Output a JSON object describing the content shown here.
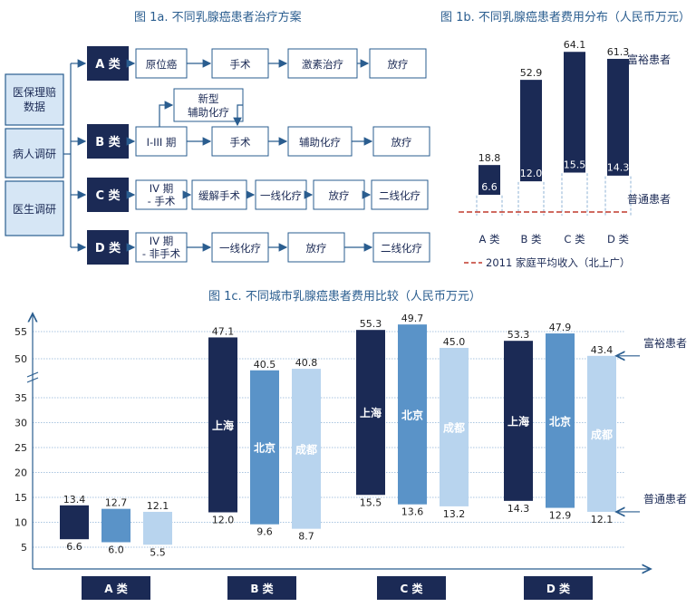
{
  "fig_a": {
    "title": "图 1a. 不同乳腺癌患者治疗方案",
    "sources": [
      "医保理赔数据",
      "病人调研",
      "医生调研"
    ],
    "rows": [
      {
        "category": "A 类",
        "steps": [
          "原位癌",
          "手术",
          "激素治疗",
          "放疗"
        ]
      },
      {
        "category": "B 类",
        "steps": [
          "I-III 期",
          "手术",
          "辅助化疗",
          "放疗"
        ],
        "extra": "新型辅助化疗"
      },
      {
        "category": "C 类",
        "steps": [
          "IV 期 - 手术",
          "缓解手术",
          "一线化疗",
          "放疗",
          "二线化疗"
        ]
      },
      {
        "category": "D 类",
        "steps": [
          "IV 期 - 非手术",
          "一线化疗",
          "放疗",
          "二线化疗"
        ]
      }
    ]
  },
  "chart_data": [
    {
      "type": "bar",
      "title": "图 1b. 不同乳腺癌患者费用分布（人民币万元）",
      "categories": [
        "A 类",
        "B 类",
        "C 类",
        "D 类"
      ],
      "series": [
        {
          "name": "富裕患者",
          "values": [
            18.8,
            52.9,
            64.1,
            61.3
          ]
        },
        {
          "name": "普通患者",
          "values": [
            6.6,
            12.0,
            15.5,
            14.3
          ]
        }
      ],
      "reference_line": {
        "label": "2011 家庭平均收入（北上广）",
        "color": "#c0392b"
      },
      "colors": {
        "bar": "#1b2a55",
        "accent": "#2a5d8f"
      }
    },
    {
      "type": "bar",
      "title": "图 1c. 不同城市乳腺癌患者费用比较（人民币万元）",
      "categories": [
        "A 类",
        "B 类",
        "C 类",
        "D 类"
      ],
      "cities": [
        "上海",
        "北京",
        "成都"
      ],
      "series": [
        {
          "name": "上海",
          "high": [
            13.4,
            47.1,
            55.3,
            53.3
          ],
          "low": [
            6.6,
            12.0,
            15.5,
            14.3
          ]
        },
        {
          "name": "北京",
          "high": [
            12.7,
            40.5,
            49.7,
            47.9
          ],
          "low": [
            6.0,
            9.6,
            13.6,
            12.9
          ]
        },
        {
          "name": "成都",
          "high": [
            12.1,
            40.8,
            45.0,
            43.4
          ],
          "low": [
            5.5,
            8.7,
            13.2,
            12.1
          ]
        }
      ],
      "y_ticks": [
        5,
        10,
        15,
        20,
        25,
        30,
        35,
        50,
        55
      ],
      "y_axis_break": [
        35,
        50
      ],
      "annotations": [
        "富裕患者",
        "普通患者"
      ],
      "colors": {
        "上海": "#1b2a55",
        "北京": "#5a93c8",
        "成都": "#b8d4ee",
        "grid": "#8fb3d6"
      }
    }
  ]
}
